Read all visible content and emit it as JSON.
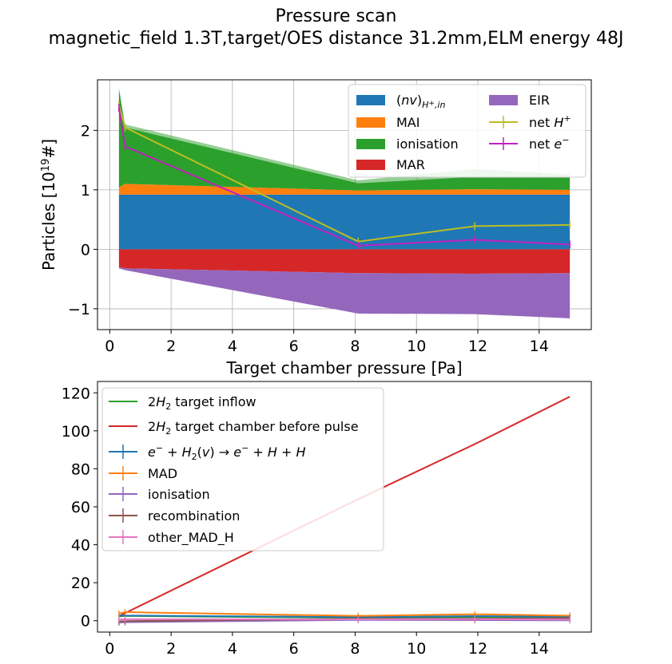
{
  "title": "Pressure scan",
  "subtitle": "magnetic_field 1.3T,target/OES distance 31.2mm,ELM energy 48J",
  "chart_data": [
    {
      "type": "area",
      "xlabel": "Target chamber pressure [Pa]",
      "ylabel": "Particles [10^19 #]",
      "xlim": [
        -0.4,
        15.7
      ],
      "ylim": [
        -1.35,
        2.85
      ],
      "xticks": [
        0,
        2,
        4,
        6,
        8,
        10,
        12,
        14
      ],
      "yticks": [
        -1,
        0,
        1,
        2
      ],
      "ytick_labels": [
        "−1",
        "0",
        "1",
        "2"
      ],
      "grid": true,
      "legend_position": "top-right",
      "x": [
        0.3,
        0.5,
        8.1,
        11.9,
        15.0
      ],
      "positive_stack": [
        {
          "name": "(nv)_{H+,in}",
          "color": "#1f77b4",
          "values": [
            0.92,
            0.92,
            0.92,
            0.92,
            0.92
          ]
        },
        {
          "name": "MAI",
          "color": "#ff7f0e",
          "values": [
            0.12,
            0.18,
            0.07,
            0.09,
            0.08
          ]
        },
        {
          "name": "ionisation",
          "color": "#2ca02c",
          "values": [
            1.65,
            0.95,
            0.12,
            0.21,
            0.22
          ]
        }
      ],
      "positive_uncertainty_top": [
        2.72,
        2.1,
        1.16,
        1.35,
        1.26
      ],
      "negative_stack": [
        {
          "name": "MAR",
          "color": "#d62728",
          "values": [
            -0.3,
            -0.32,
            -0.4,
            -0.41,
            -0.4
          ]
        },
        {
          "name": "EIR",
          "color": "#9467bd",
          "values": [
            -0.02,
            -0.03,
            -0.68,
            -0.68,
            -0.76
          ]
        }
      ],
      "lines": [
        {
          "name": "net H+",
          "color": "#bcbd22",
          "values": [
            2.42,
            2.05,
            0.13,
            0.39,
            0.41
          ]
        },
        {
          "name": "net e−",
          "color": "#c020c0",
          "values": [
            2.38,
            1.73,
            0.06,
            0.16,
            0.08
          ]
        }
      ]
    },
    {
      "type": "line",
      "xlim": [
        -0.4,
        15.7
      ],
      "ylim": [
        -6,
        126
      ],
      "xticks": [
        0,
        2,
        4,
        6,
        8,
        10,
        12,
        14
      ],
      "yticks": [
        0,
        20,
        40,
        60,
        80,
        100,
        120
      ],
      "grid": false,
      "legend_position": "top-left",
      "x": [
        0.3,
        0.5,
        8.1,
        11.9,
        15.0
      ],
      "series": [
        {
          "name": "2H2 target inflow",
          "color": "#2ca02c",
          "values": [
            2.2,
            2.5,
            1.5,
            1.8,
            1.6
          ]
        },
        {
          "name": "2H2 target chamber before pulse",
          "color": "#d62728",
          "values": [
            2.4,
            4.0,
            64.0,
            93.0,
            118.0
          ]
        },
        {
          "name": "e− + H2(v) → e− + H + H",
          "color": "#1f77b4",
          "values": [
            2.8,
            2.7,
            1.9,
            2.4,
            2.1
          ]
        },
        {
          "name": "MAD",
          "color": "#ff7f0e",
          "values": [
            3.8,
            4.5,
            2.5,
            3.4,
            2.6
          ]
        },
        {
          "name": "ionisation",
          "color": "#9467bd",
          "values": [
            -1.0,
            -0.8,
            0.4,
            0.3,
            0.2
          ]
        },
        {
          "name": "recombination",
          "color": "#8c564b",
          "values": [
            -0.4,
            -0.2,
            1.0,
            1.1,
            1.3
          ]
        },
        {
          "name": "other_MAD_H",
          "color": "#e377c2",
          "values": [
            0.6,
            0.8,
            0.7,
            0.9,
            0.6
          ]
        }
      ]
    }
  ]
}
